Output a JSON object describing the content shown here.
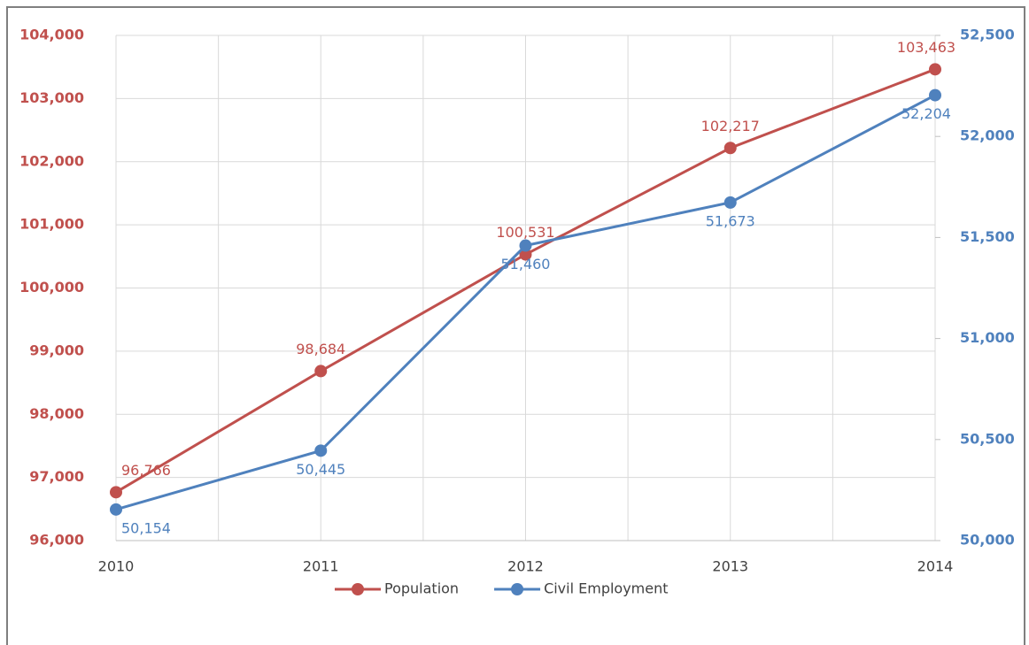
{
  "chart_data": {
    "type": "line",
    "categories": [
      "2010",
      "2011",
      "2012",
      "2013",
      "2014"
    ],
    "series": [
      {
        "name": "Population",
        "color": "#c0504d",
        "values": [
          96766,
          98684,
          100531,
          102217,
          103463
        ],
        "value_labels": [
          "96,766",
          "98,684",
          "100,531",
          "102,217",
          "103,463"
        ]
      },
      {
        "name": "Civil Employment",
        "color": "#4f81bd",
        "axis": "y2",
        "values": [
          50154,
          50445,
          51460,
          51673,
          52204
        ],
        "value_labels": [
          "50,154",
          "50,445",
          "51,460",
          "51,673",
          "52,204"
        ]
      }
    ],
    "ylim": [
      96000,
      104000
    ],
    "yticks": [
      {
        "value": 96000,
        "label": "96,000"
      },
      {
        "value": 97000,
        "label": "97,000"
      },
      {
        "value": 98000,
        "label": "98,000"
      },
      {
        "value": 99000,
        "label": "99,000"
      },
      {
        "value": 100000,
        "label": "100,000"
      },
      {
        "value": 101000,
        "label": "101,000"
      },
      {
        "value": 102000,
        "label": "102,000"
      },
      {
        "value": 103000,
        "label": "103,000"
      },
      {
        "value": 104000,
        "label": "104,000"
      }
    ],
    "y2lim": [
      50000,
      52500
    ],
    "y2ticks": [
      {
        "value": 50000,
        "label": "50,000"
      },
      {
        "value": 50500,
        "label": "50,500"
      },
      {
        "value": 51000,
        "label": "51,000"
      },
      {
        "value": 51500,
        "label": "51,500"
      },
      {
        "value": 52000,
        "label": "52,000"
      },
      {
        "value": 52500,
        "label": "52,500"
      }
    ],
    "grid": true,
    "legend": "bottom"
  }
}
